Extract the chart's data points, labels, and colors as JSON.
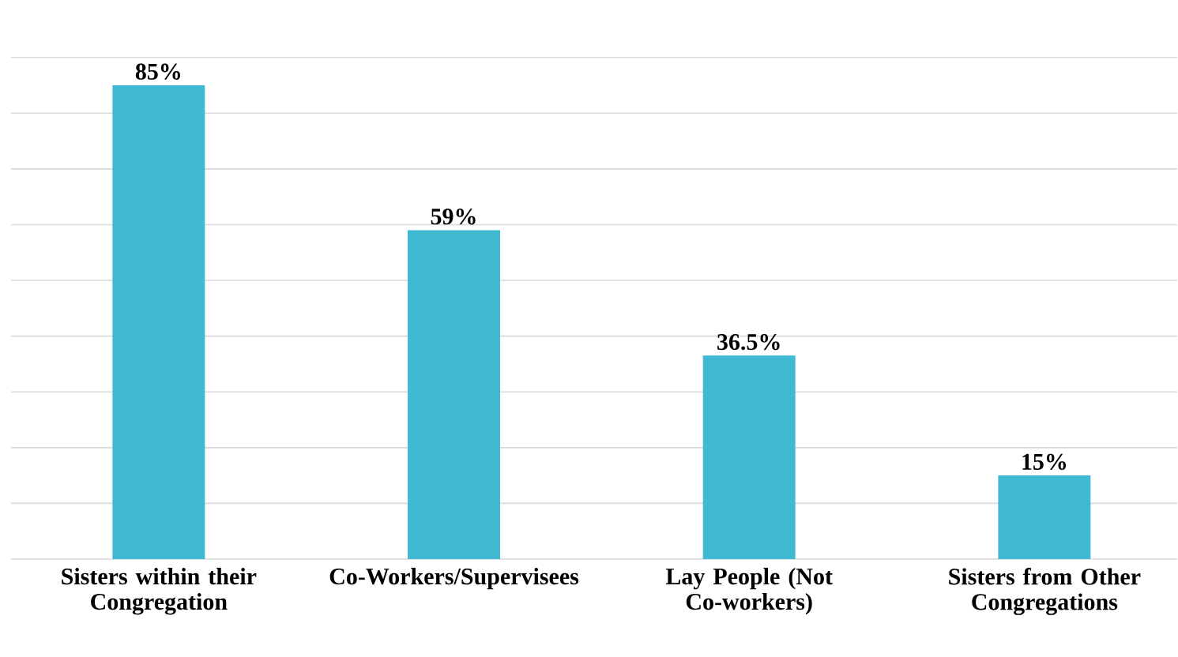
{
  "chart_data": {
    "type": "bar",
    "categories": [
      "Sisters within their Congregation",
      "Co-Workers/Supervisees",
      "Lay People (Not Co-workers)",
      "Sisters from Other Congregations"
    ],
    "values": [
      85,
      59,
      36.5,
      15
    ],
    "value_labels": [
      "85%",
      "59%",
      "36.5%",
      "15%"
    ],
    "color": "#40b9d3",
    "grid": "y",
    "tick_labels": "x"
  }
}
